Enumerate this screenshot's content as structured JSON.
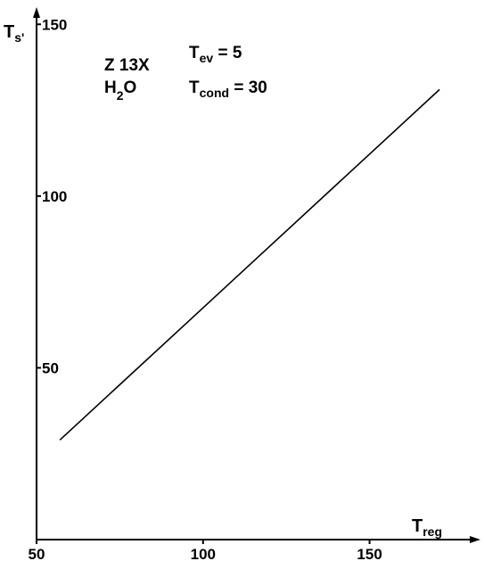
{
  "chart_data": {
    "type": "line",
    "xlabel": {
      "main": "T",
      "sub": "reg"
    },
    "ylabel": {
      "main": "T",
      "sub": "s'"
    },
    "xlim": [
      50,
      175
    ],
    "ylim": [
      0,
      155
    ],
    "x_ticks": [
      50,
      100,
      150
    ],
    "y_ticks": [
      50,
      100,
      150
    ],
    "x_tick_labels": [
      "50",
      "100",
      "150"
    ],
    "y_tick_labels": [
      "50",
      "100",
      "150"
    ],
    "grid": false,
    "series": [
      {
        "x": [
          57,
          171
        ],
        "y": [
          29,
          131
        ]
      }
    ],
    "annotations": {
      "material": "Z 13X",
      "fluid": {
        "main": "H",
        "sub": "2",
        "tail": "O"
      },
      "t_ev": {
        "main": "T",
        "sub": "ev",
        "value": " = 5"
      },
      "t_cond": {
        "main": "T",
        "sub": "cond",
        "value": " = 30"
      }
    }
  }
}
